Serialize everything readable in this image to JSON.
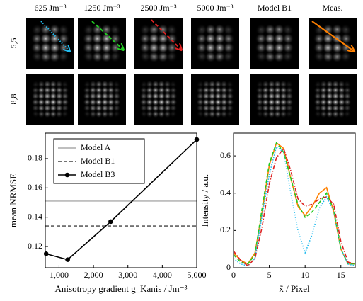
{
  "panels": {
    "columns": [
      "625 Jm⁻³",
      "1250 Jm⁻³",
      "2500 Jm⁻³",
      "5000 Jm⁻³",
      "Model B1",
      "Meas."
    ],
    "rows": [
      "5,5",
      "8,8"
    ]
  },
  "chart_data": [
    {
      "type": "line",
      "ylabel": "mean NRMSE",
      "xlabel": "Anisotropy gradient g_Kanis / Jm⁻³",
      "x": [
        625,
        1250,
        2500,
        5000
      ],
      "series": [
        {
          "name": "Model B3",
          "color": "#000000",
          "values": [
            0.115,
            0.111,
            0.137,
            0.193
          ],
          "markers": true
        }
      ],
      "reference_lines": [
        {
          "name": "Model A",
          "value": 0.151,
          "color": "#aaaaaa"
        },
        {
          "name": "Model B1",
          "value": 0.134,
          "color": "#444444",
          "dash": "dashed"
        }
      ],
      "legend": "upper left",
      "xlim": [
        600,
        5000
      ],
      "xticks": [
        {
          "value": 1000,
          "label": "1,000"
        },
        {
          "value": 2000,
          "label": "2,000"
        },
        {
          "value": 3000,
          "label": "3,000"
        },
        {
          "value": 4000,
          "label": "4,000"
        },
        {
          "value": 5000,
          "label": "5,000"
        }
      ],
      "ylim": [
        0.1055,
        0.1974
      ],
      "yticks": [
        0.12,
        0.14,
        0.16,
        0.18
      ]
    },
    {
      "type": "line",
      "ylabel": "Intensity / a.u.",
      "xlabel": "x̃ / Pixel",
      "x": [
        0,
        1,
        2,
        3,
        4,
        5,
        6,
        7,
        8,
        9,
        10,
        11,
        12,
        13,
        14,
        15,
        16,
        17
      ],
      "series": [
        {
          "color": "#ff8000",
          "values": [
            0.08,
            0.04,
            0.02,
            0.08,
            0.3,
            0.55,
            0.67,
            0.64,
            0.48,
            0.33,
            0.28,
            0.33,
            0.4,
            0.43,
            0.3,
            0.1,
            0.02,
            0.02
          ]
        },
        {
          "color": "#22cc22",
          "dash": "dashed",
          "values": [
            0.07,
            0.03,
            0.02,
            0.07,
            0.32,
            0.56,
            0.67,
            0.62,
            0.48,
            0.34,
            0.27,
            0.3,
            0.35,
            0.4,
            0.31,
            0.1,
            0.02,
            0.02
          ]
        },
        {
          "color": "#22bbee",
          "dash": "dotted",
          "values": [
            0.05,
            0.02,
            0.01,
            0.05,
            0.28,
            0.5,
            0.65,
            0.62,
            0.4,
            0.2,
            0.08,
            0.18,
            0.32,
            0.38,
            0.3,
            0.1,
            0.02,
            0.01
          ]
        },
        {
          "color": "#dd2222",
          "dash": "dashdot",
          "values": [
            0.09,
            0.04,
            0.01,
            0.05,
            0.22,
            0.45,
            0.59,
            0.64,
            0.52,
            0.37,
            0.33,
            0.34,
            0.37,
            0.38,
            0.34,
            0.14,
            0.03,
            0.02
          ]
        }
      ],
      "xlim": [
        0,
        17
      ],
      "xticks": [
        0,
        5,
        10,
        15
      ],
      "ylim": [
        0,
        0.722
      ],
      "yticks": [
        0,
        0.2,
        0.4,
        0.6
      ]
    }
  ]
}
